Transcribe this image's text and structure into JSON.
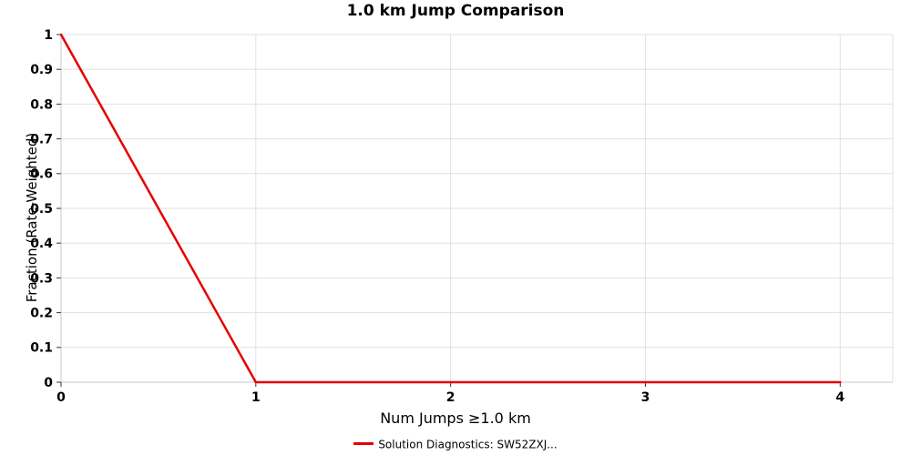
{
  "chart_data": {
    "type": "line",
    "title": "1.0 km Jump Comparison",
    "xlabel": "Num Jumps ≥1.0 km",
    "ylabel": "Fraction (Rate-Weighted)",
    "x": [
      0,
      1,
      2,
      3,
      4
    ],
    "series": [
      {
        "name": "Solution Diagnostics: SW52ZXJ...",
        "color": "#e60000",
        "values": [
          1,
          0,
          0,
          0,
          0
        ]
      }
    ],
    "xlim": [
      0,
      4.27
    ],
    "ylim": [
      0,
      1
    ],
    "x_ticks": [
      0,
      1,
      2,
      3,
      4
    ],
    "x_tick_labels": [
      "0",
      "1",
      "2",
      "3",
      "4"
    ],
    "y_ticks": [
      0,
      0.1,
      0.2,
      0.3,
      0.4,
      0.5,
      0.6,
      0.7,
      0.8,
      0.9,
      1
    ],
    "y_tick_labels": [
      "0",
      "0.1",
      "0.2",
      "0.3",
      "0.4",
      "0.5",
      "0.6",
      "0.7",
      "0.8",
      "0.9",
      "1"
    ],
    "grid": true,
    "grid_color": "#e0e0e0",
    "axis_color": "#c8c8c8",
    "tick_color": "#333333",
    "legend_position": "bottom"
  }
}
